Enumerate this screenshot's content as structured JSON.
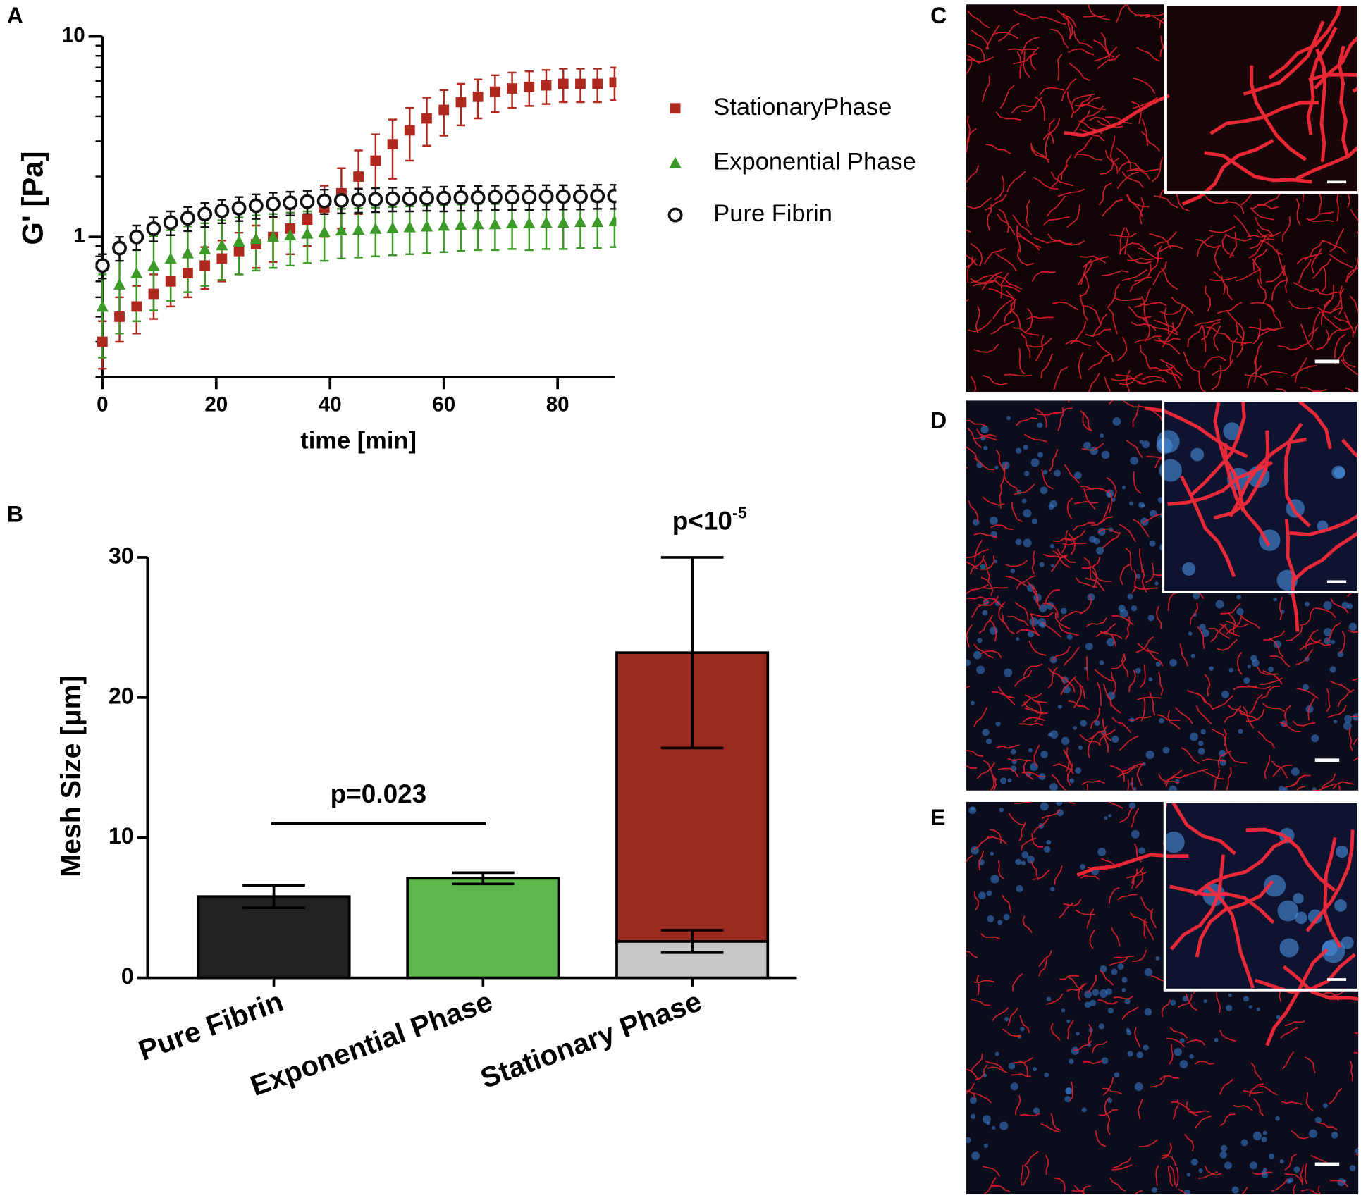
{
  "chart_data": [
    {
      "type": "line",
      "panel": "A",
      "xlabel": "time [min]",
      "ylabel": "G' [Pa]",
      "log_y": true,
      "xlim": [
        0,
        90
      ],
      "xticks": [
        0,
        20,
        40,
        60,
        80
      ],
      "ylim": [
        0.2,
        10
      ],
      "yticks": [
        1,
        10
      ],
      "yminorticks": [
        0.2,
        0.3,
        0.4,
        0.5,
        0.6,
        0.7,
        0.8,
        0.9,
        2,
        3,
        4,
        5,
        6,
        7,
        8,
        9
      ],
      "x": [
        0,
        3,
        6,
        9,
        12,
        15,
        18,
        21,
        24,
        27,
        30,
        33,
        36,
        39,
        42,
        45,
        48,
        51,
        54,
        57,
        60,
        63,
        66,
        69,
        72,
        75,
        78,
        81,
        84,
        87,
        90
      ],
      "series": [
        {
          "name": "StationaryPhase",
          "color": "#b0291f",
          "marker": "square",
          "values": [
            0.3,
            0.4,
            0.45,
            0.52,
            0.6,
            0.66,
            0.72,
            0.78,
            0.85,
            0.92,
            1.0,
            1.1,
            1.22,
            1.4,
            1.65,
            2.0,
            2.4,
            2.9,
            3.4,
            3.9,
            4.3,
            4.7,
            5.0,
            5.3,
            5.5,
            5.6,
            5.7,
            5.8,
            5.8,
            5.8,
            5.9
          ],
          "errors": [
            0.08,
            0.1,
            0.12,
            0.13,
            0.15,
            0.16,
            0.17,
            0.18,
            0.2,
            0.22,
            0.25,
            0.28,
            0.32,
            0.4,
            0.55,
            0.7,
            0.85,
            0.95,
            1.0,
            1.05,
            1.1,
            1.1,
            1.1,
            1.1,
            1.1,
            1.1,
            1.1,
            1.1,
            1.1,
            1.1,
            1.1
          ]
        },
        {
          "name": "Exponential Phase",
          "color": "#3c9a28",
          "marker": "triangle",
          "values": [
            0.45,
            0.58,
            0.66,
            0.72,
            0.78,
            0.83,
            0.87,
            0.91,
            0.95,
            0.98,
            1.0,
            1.02,
            1.04,
            1.06,
            1.08,
            1.09,
            1.1,
            1.11,
            1.12,
            1.13,
            1.14,
            1.15,
            1.16,
            1.16,
            1.17,
            1.17,
            1.18,
            1.18,
            1.19,
            1.19,
            1.2
          ],
          "errors": [
            0.2,
            0.25,
            0.28,
            0.29,
            0.3,
            0.3,
            0.3,
            0.3,
            0.3,
            0.3,
            0.3,
            0.3,
            0.3,
            0.3,
            0.3,
            0.3,
            0.3,
            0.3,
            0.3,
            0.3,
            0.3,
            0.3,
            0.3,
            0.3,
            0.3,
            0.31,
            0.31,
            0.31,
            0.31,
            0.31,
            0.31
          ]
        },
        {
          "name": "Pure Fibrin",
          "color": "#111111",
          "marker": "circle",
          "values": [
            0.72,
            0.88,
            1.0,
            1.1,
            1.18,
            1.24,
            1.3,
            1.35,
            1.39,
            1.43,
            1.46,
            1.48,
            1.5,
            1.51,
            1.52,
            1.53,
            1.54,
            1.55,
            1.55,
            1.56,
            1.56,
            1.57,
            1.57,
            1.58,
            1.58,
            1.58,
            1.59,
            1.59,
            1.59,
            1.6,
            1.6
          ],
          "errors": [
            0.1,
            0.12,
            0.14,
            0.15,
            0.16,
            0.17,
            0.18,
            0.18,
            0.19,
            0.2,
            0.2,
            0.2,
            0.2,
            0.21,
            0.21,
            0.21,
            0.21,
            0.21,
            0.21,
            0.21,
            0.22,
            0.22,
            0.22,
            0.22,
            0.22,
            0.22,
            0.22,
            0.22,
            0.22,
            0.22,
            0.22
          ]
        }
      ]
    },
    {
      "type": "bar",
      "panel": "B",
      "ylabel": "Mesh Size [μm]",
      "categories": [
        "Pure Fibrin",
        "Exponential Phase",
        "Stationary Phase"
      ],
      "ylim": [
        0,
        30
      ],
      "yticks": [
        0,
        10,
        20,
        30
      ],
      "series": [
        {
          "colors": [
            "#222222",
            "#5cb84a",
            "#c8c8c8"
          ],
          "values": [
            5.8,
            7.1,
            2.6
          ],
          "errors": [
            0.8,
            0.4,
            0.8
          ]
        },
        {
          "colors": [
            null,
            null,
            "#9b2a20"
          ],
          "values": [
            null,
            null,
            20.6
          ],
          "errors": [
            null,
            null,
            6.8
          ]
        }
      ],
      "annotations": [
        {
          "text": "p=0.023",
          "between": [
            0,
            1
          ],
          "y": 11
        },
        {
          "text": "p<10",
          "superscript": "-5",
          "category": 2
        }
      ]
    }
  ],
  "images": [
    {
      "panel": "C"
    },
    {
      "panel": "D"
    },
    {
      "panel": "E"
    }
  ]
}
